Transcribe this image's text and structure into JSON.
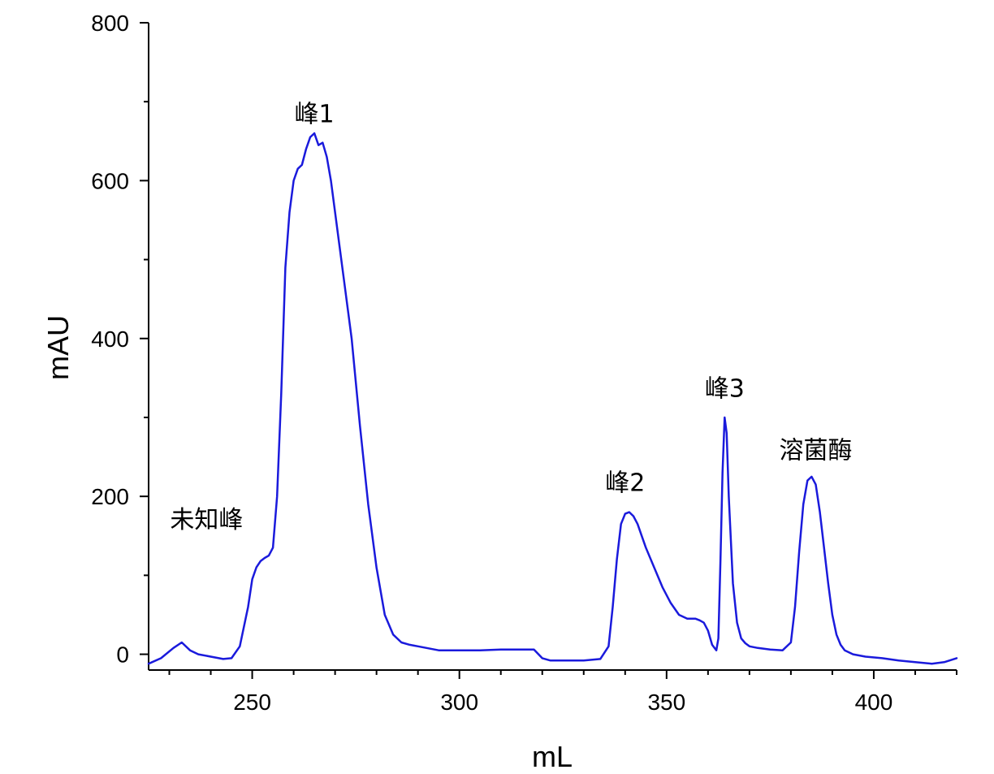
{
  "chart_data": {
    "type": "line",
    "title": "",
    "xlabel": "mL",
    "ylabel": "mAU",
    "xlim": [
      225,
      420
    ],
    "ylim": [
      -20,
      800
    ],
    "x_ticks": [
      250,
      300,
      350,
      400
    ],
    "y_ticks": [
      0,
      200,
      400,
      600,
      800
    ],
    "x_minor_step": 10,
    "y_minor_step": 100,
    "grid": false,
    "legend": "none",
    "series_color": "#1a1adc",
    "series": [
      {
        "x": [
          225,
          228,
          231,
          233,
          235,
          237,
          240,
          243,
          245,
          247,
          249,
          250,
          251,
          252,
          253,
          254,
          255,
          256,
          257,
          258,
          259,
          260,
          261,
          262,
          263,
          264,
          265,
          266,
          267,
          268,
          269,
          270,
          272,
          274,
          276,
          278,
          280,
          282,
          284,
          286,
          288,
          290,
          295,
          300,
          305,
          310,
          315,
          318,
          320,
          322,
          325,
          330,
          334,
          336,
          337,
          338,
          339,
          340,
          341,
          342,
          343,
          344,
          345,
          347,
          349,
          351,
          353,
          355,
          357,
          358,
          359,
          360,
          361,
          362,
          362.5,
          363,
          363.5,
          364,
          364.5,
          365,
          366,
          367,
          368,
          369,
          370,
          372,
          375,
          378,
          380,
          381,
          382,
          383,
          384,
          385,
          386,
          387,
          388,
          389,
          390,
          391,
          392,
          393,
          395,
          398,
          402,
          406,
          410,
          414,
          417,
          420
        ],
        "values": [
          -12,
          -5,
          8,
          15,
          5,
          0,
          -3,
          -6,
          -5,
          10,
          60,
          95,
          110,
          118,
          122,
          125,
          135,
          200,
          330,
          490,
          560,
          600,
          615,
          620,
          640,
          655,
          660,
          645,
          648,
          630,
          600,
          560,
          480,
          400,
          290,
          190,
          110,
          50,
          25,
          15,
          12,
          10,
          5,
          5,
          5,
          6,
          6,
          6,
          -5,
          -8,
          -8,
          -8,
          -6,
          10,
          60,
          120,
          165,
          178,
          180,
          175,
          165,
          150,
          135,
          110,
          85,
          65,
          50,
          45,
          45,
          43,
          40,
          30,
          12,
          5,
          20,
          120,
          230,
          300,
          280,
          200,
          90,
          40,
          20,
          14,
          10,
          8,
          6,
          5,
          15,
          60,
          130,
          190,
          220,
          225,
          215,
          180,
          135,
          90,
          50,
          25,
          12,
          5,
          0,
          -3,
          -5,
          -8,
          -10,
          -12,
          -10,
          -5
        ]
      }
    ],
    "annotations": [
      {
        "text": "未知峰",
        "x": 239,
        "y": 160
      },
      {
        "text": "峰1",
        "x": 265,
        "y": 674
      },
      {
        "text": "峰2",
        "x": 340,
        "y": 207
      },
      {
        "text": "峰3",
        "x": 364,
        "y": 326
      },
      {
        "text": "溶菌酶",
        "x": 386,
        "y": 248
      }
    ]
  }
}
